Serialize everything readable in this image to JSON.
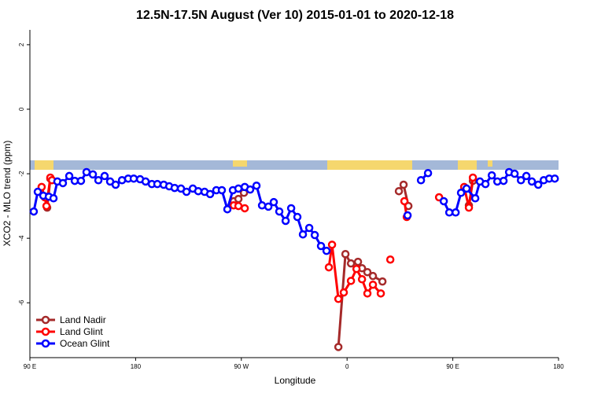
{
  "chart_data": {
    "type": "line",
    "title": "12.5N-17.5N August (Ver 10)   2015-01-01 to 2020-12-18",
    "x_label": "Longitude",
    "y_label": "XCO2 - MLO trend (ppm)",
    "xlim": [
      90,
      540
    ],
    "ylim": [
      -7.7,
      2.46
    ],
    "xticks": [
      {
        "value": 90,
        "label": "90 E"
      },
      {
        "value": 180,
        "label": "180"
      },
      {
        "value": 270,
        "label": "90 W"
      },
      {
        "value": 360,
        "label": "0"
      },
      {
        "value": 450,
        "label": "90 E"
      },
      {
        "value": 540,
        "label": "180"
      }
    ],
    "yticks": [
      2,
      0,
      -2,
      -4,
      -6
    ],
    "legend": "bottom-left",
    "series": [
      {
        "name": "Land Nadir",
        "color": "#a52a2a",
        "x": [
          103.4,
          104.7,
          107.4,
          null,
          263.5,
          267.5,
          272.2,
          null,
          352.6,
          358.6,
          363.3,
          369.3,
          372.7,
          377.3,
          382.0,
          390.1,
          null,
          404.1,
          408.1,
          412.2,
          null,
          463.7,
          467.1
        ],
        "values": [
          -2.71,
          -3.05,
          -2.15,
          null,
          -2.85,
          -2.78,
          -2.59,
          null,
          -7.37,
          -4.49,
          -4.78,
          -4.73,
          -4.93,
          -5.05,
          -5.17,
          -5.34,
          null,
          -2.54,
          -2.34,
          -3.0,
          null,
          -2.98,
          -2.22
        ]
      },
      {
        "name": "Land Glint",
        "color": "#ff0000",
        "x": [
          100.0,
          102.7,
          104.1,
          107.4,
          108.8,
          null,
          263.5,
          267.5,
          272.9,
          null,
          344.5,
          347.2,
          352.6,
          357.2,
          363.3,
          368.0,
          372.7,
          377.3,
          382.0,
          388.7,
          null,
          396.8,
          null,
          408.8,
          410.8,
          null,
          438.3,
          null,
          459.7,
          463.7,
          467.1
        ],
        "values": [
          -2.41,
          -2.73,
          -3.0,
          -2.12,
          -2.2,
          null,
          -2.98,
          -3.0,
          -3.07,
          null,
          -4.9,
          -4.2,
          -5.88,
          -5.68,
          -5.32,
          -4.95,
          -5.27,
          -5.71,
          -5.44,
          -5.71,
          null,
          -4.66,
          null,
          -2.85,
          -3.34,
          null,
          -2.73,
          null,
          -2.41,
          -3.05,
          -2.12
        ]
      },
      {
        "name": "Ocean Glint",
        "color": "#0000ff",
        "x": [
          93.3,
          96.7,
          101.4,
          106.1,
          110.1,
          113.4,
          118.1,
          123.5,
          128.2,
          133.5,
          138.2,
          143.6,
          148.3,
          153.6,
          158.3,
          163.0,
          168.4,
          173.7,
          178.4,
          183.8,
          188.5,
          193.8,
          198.5,
          203.9,
          208.6,
          213.2,
          218.6,
          223.3,
          228.7,
          233.3,
          238.7,
          243.4,
          248.7,
          253.4,
          258.1,
          262.8,
          267.5,
          272.9,
          277.5,
          282.9,
          287.6,
          293.0,
          297.6,
          302.3,
          307.7,
          312.4,
          317.7,
          322.4,
          327.8,
          332.5,
          337.8,
          342.5,
          null,
          411.5,
          null,
          422.9,
          428.9,
          null,
          442.3,
          447.0,
          452.4,
          457.0,
          461.7,
          469.1,
          473.1,
          477.8,
          483.2,
          487.9,
          493.2,
          497.9,
          502.6,
          508.0,
          512.6,
          517.3,
          522.7,
          527.4,
          532.1,
          536.8
        ],
        "values": [
          -3.17,
          -2.56,
          -2.68,
          -2.71,
          -2.76,
          -2.24,
          -2.29,
          -2.07,
          -2.22,
          -2.22,
          -1.95,
          -2.02,
          -2.2,
          -2.07,
          -2.24,
          -2.34,
          -2.2,
          -2.15,
          -2.15,
          -2.17,
          -2.24,
          -2.32,
          -2.32,
          -2.34,
          -2.39,
          -2.44,
          -2.46,
          -2.56,
          -2.46,
          -2.54,
          -2.56,
          -2.63,
          -2.51,
          -2.51,
          -3.1,
          -2.51,
          -2.46,
          -2.41,
          -2.49,
          -2.37,
          -2.98,
          -3.02,
          -2.88,
          -3.17,
          -3.46,
          -3.07,
          -3.34,
          -3.88,
          -3.68,
          -3.9,
          -4.24,
          -4.39,
          null,
          -3.29,
          null,
          -2.2,
          -1.98,
          null,
          -2.85,
          -3.2,
          -3.2,
          -2.59,
          -2.46,
          -2.76,
          -2.24,
          -2.32,
          -2.05,
          -2.24,
          -2.22,
          -1.95,
          -2.0,
          -2.2,
          -2.07,
          -2.24,
          -2.34,
          -2.2,
          -2.15,
          -2.15
        ]
      }
    ]
  }
}
